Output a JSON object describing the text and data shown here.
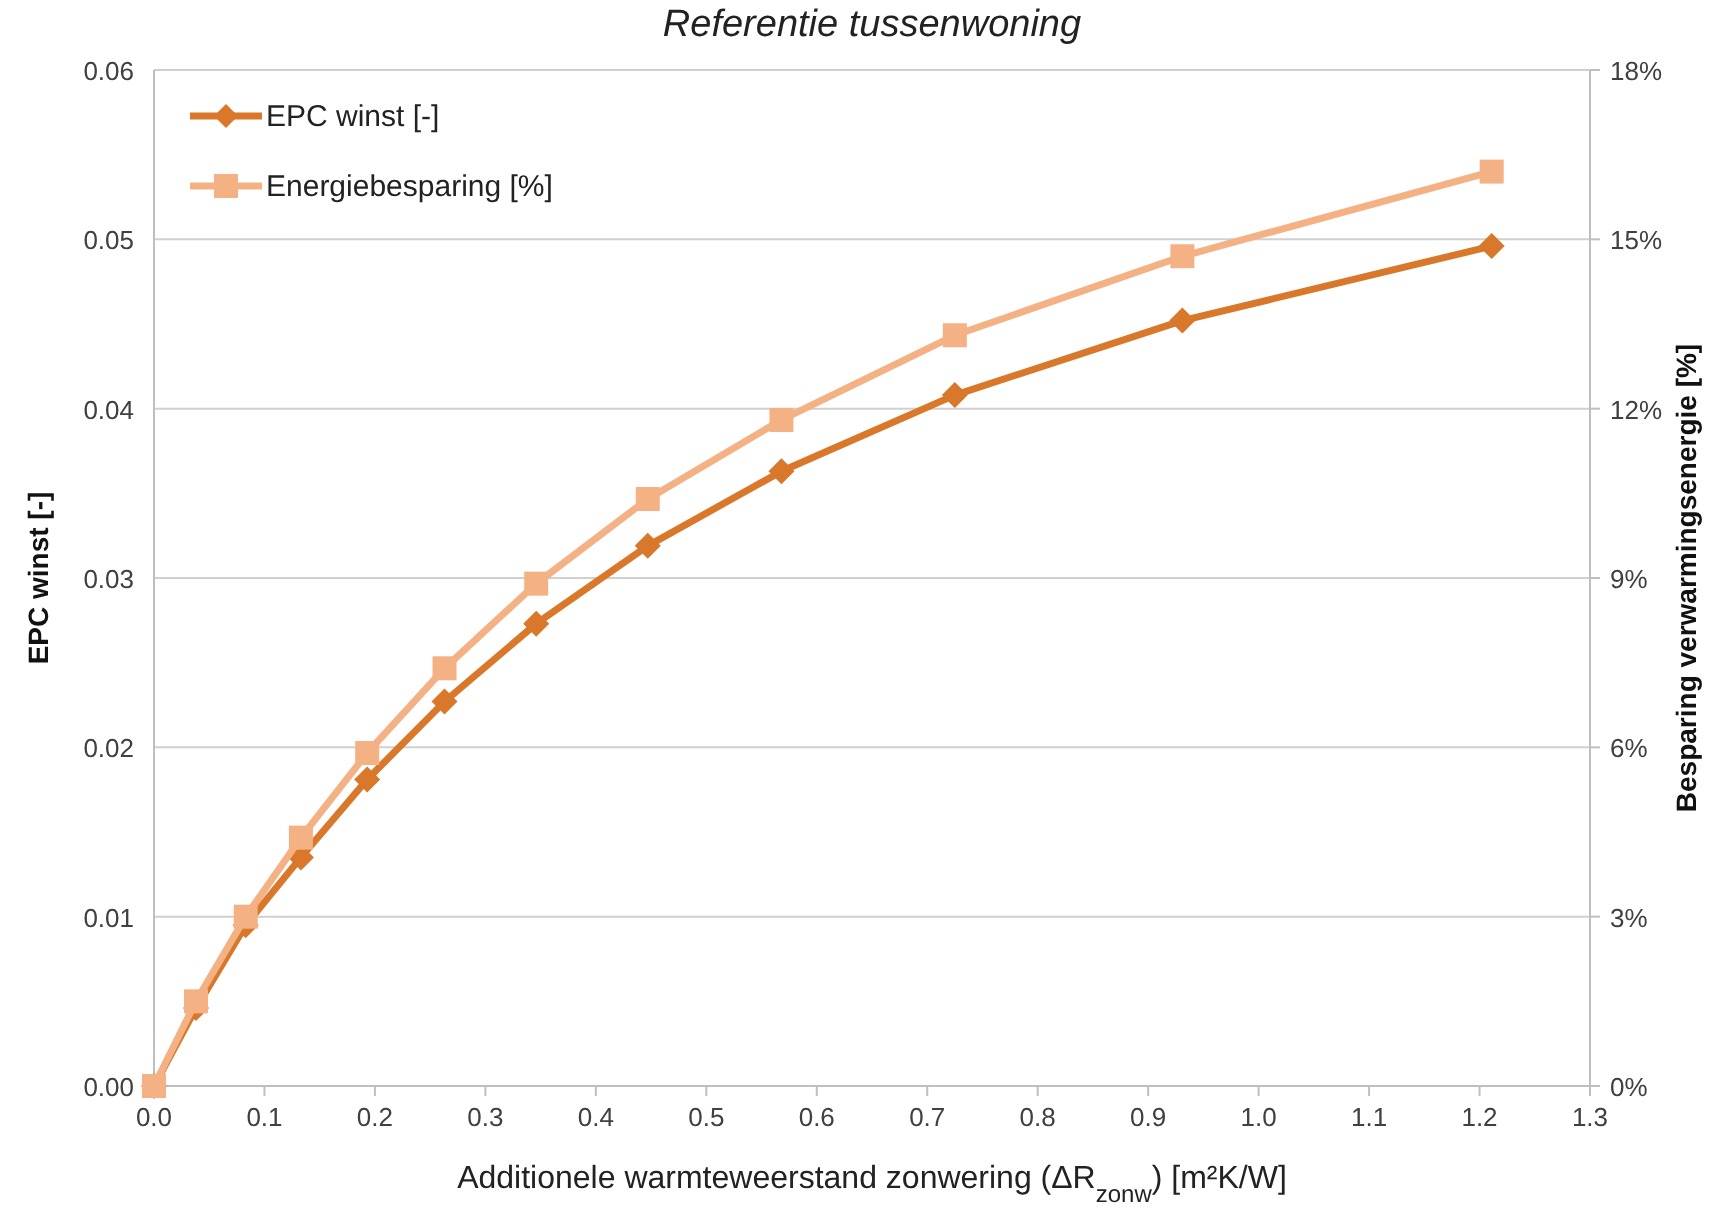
{
  "chart_data": {
    "type": "line",
    "title": "Referentie tussenwoning",
    "xlabel": "Additionele warmteweerstand zonwering (ΔR$_{zonw}$) [m²K/W]",
    "ylabel": "EPC winst  [-]",
    "y2label": "Besparing verwarmingsenergie [%]",
    "xlim": [
      0,
      1.3
    ],
    "xticks": [
      {
        "value": 0,
        "label": "0.0"
      },
      0.1,
      0.2,
      0.3,
      0.4,
      0.5,
      0.6,
      0.7,
      0.8,
      0.9,
      {
        "value": 1,
        "label": "1.0"
      },
      1.1,
      1.2,
      1.3
    ],
    "ylim": [
      0,
      0.06
    ],
    "yticks": [
      {
        "value": 0,
        "label": "0.00"
      },
      {
        "value": 0.01,
        "label": "0.01"
      },
      {
        "value": 0.02,
        "label": "0.02"
      },
      {
        "value": 0.03,
        "label": "0.03"
      },
      {
        "value": 0.04,
        "label": "0.04"
      },
      {
        "value": 0.05,
        "label": "0.05"
      },
      {
        "value": 0.06,
        "label": "0.06"
      }
    ],
    "y2lim": [
      0,
      18
    ],
    "y2ticks": [
      {
        "value": 0,
        "label": "0%"
      },
      {
        "value": 3,
        "label": "3%"
      },
      {
        "value": 6,
        "label": "6%"
      },
      {
        "value": 9,
        "label": "9%"
      },
      {
        "value": 12,
        "label": "12%"
      },
      {
        "value": 15,
        "label": "15%"
      },
      {
        "value": 18,
        "label": "18%"
      }
    ],
    "grid": "y",
    "legend": "top left",
    "x": [
      0,
      0.038,
      0.083,
      0.133,
      0.193,
      0.263,
      0.346,
      0.447,
      0.568,
      0.725,
      0.931,
      1.211
    ],
    "series": [
      {
        "name": "EPC winst [-]",
        "color": "#d9782b",
        "marker": "diamond",
        "values": [
          0,
          0.0046,
          0.0095,
          0.0135,
          0.0181,
          0.0227,
          0.0273,
          0.0319,
          0.0363,
          0.0408,
          0.0452,
          0.0496
        ]
      },
      {
        "name": "Energiebesparing [%]",
        "color": "#f4b183",
        "marker": "square",
        "axis": "y2",
        "values": [
          0,
          1.5,
          3.0,
          4.4,
          5.9,
          7.4,
          8.9,
          10.4,
          11.8,
          13.3,
          14.7,
          16.2
        ]
      }
    ]
  }
}
